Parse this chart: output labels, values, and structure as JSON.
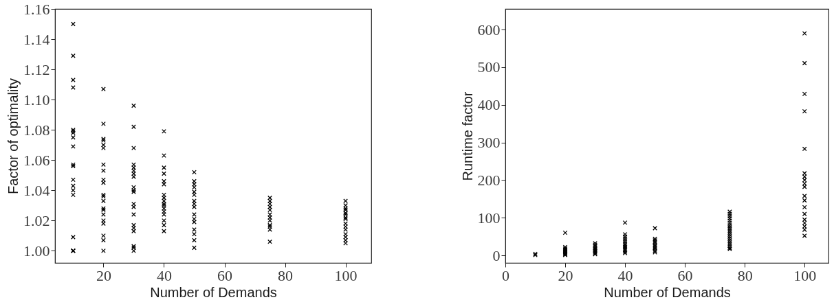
{
  "chart_data": [
    {
      "type": "scatter",
      "xlabel": "Number of Demands",
      "ylabel": "Factor of optimality",
      "color": "#000000",
      "marker": "cross",
      "xlim": [
        4,
        108.5
      ],
      "xticks": [
        20,
        40,
        60,
        80,
        100
      ],
      "ylim": [
        0.992,
        1.16
      ],
      "yticks": [
        {
          "value": 1,
          "label": "1.00"
        },
        1.02,
        1.04,
        1.06,
        1.08,
        {
          "value": 1.1,
          "label": "1.10"
        },
        1.12,
        1.14,
        1.16
      ],
      "x": [
        10,
        10,
        10,
        10,
        10,
        10,
        10,
        10,
        10,
        10,
        10,
        10,
        10,
        10,
        10,
        10,
        10,
        10,
        10,
        10,
        20,
        20,
        20,
        20,
        20,
        20,
        20,
        20,
        20,
        20,
        20,
        20,
        20,
        20,
        20,
        20,
        20,
        20,
        20,
        20,
        20,
        30,
        30,
        30,
        30,
        30,
        30,
        30,
        30,
        30,
        30,
        30,
        30,
        30,
        30,
        30,
        30,
        30,
        30,
        30,
        30,
        40,
        40,
        40,
        40,
        40,
        40,
        40,
        40,
        40,
        40,
        40,
        40,
        40,
        40,
        40,
        40,
        40,
        50,
        50,
        50,
        50,
        50,
        50,
        50,
        50,
        50,
        50,
        50,
        50,
        50,
        50,
        50,
        50,
        75,
        75,
        75,
        75,
        75,
        75,
        75,
        75,
        75,
        75,
        75,
        75,
        100,
        100,
        100,
        100,
        100,
        100,
        100,
        100,
        100,
        100,
        100,
        100,
        100,
        100,
        100
      ],
      "values": [
        1.15,
        1.129,
        1.113,
        1.108,
        1.08,
        1.079,
        1.078,
        1.075,
        1.069,
        1.057,
        1.056,
        1.047,
        1.043,
        1.04,
        1.037,
        1.009,
        1.0,
        1.0,
        1.0,
        1.0,
        1.107,
        1.084,
        1.074,
        1.073,
        1.07,
        1.068,
        1.057,
        1.053,
        1.047,
        1.045,
        1.037,
        1.036,
        1.033,
        1.028,
        1.027,
        1.024,
        1.02,
        1.018,
        1.01,
        1.007,
        1.0,
        1.096,
        1.082,
        1.068,
        1.057,
        1.055,
        1.053,
        1.051,
        1.049,
        1.042,
        1.04,
        1.039,
        1.031,
        1.029,
        1.024,
        1.017,
        1.015,
        1.013,
        1.003,
        1.002,
        1.0,
        1.079,
        1.063,
        1.055,
        1.051,
        1.046,
        1.044,
        1.037,
        1.035,
        1.033,
        1.031,
        1.03,
        1.028,
        1.026,
        1.024,
        1.02,
        1.017,
        1.013,
        1.052,
        1.046,
        1.044,
        1.042,
        1.039,
        1.037,
        1.033,
        1.031,
        1.029,
        1.024,
        1.021,
        1.019,
        1.014,
        1.011,
        1.007,
        1.002,
        1.035,
        1.033,
        1.031,
        1.029,
        1.027,
        1.024,
        1.022,
        1.02,
        1.017,
        1.016,
        1.014,
        1.006,
        1.033,
        1.03,
        1.028,
        1.027,
        1.025,
        1.024,
        1.022,
        1.021,
        1.018,
        1.016,
        1.014,
        1.011,
        1.009,
        1.007,
        1.005
      ]
    },
    {
      "type": "scatter",
      "xlabel": "Number of Demands",
      "ylabel": "Runtime factor",
      "color": "#000000",
      "marker": "cross",
      "xlim": [
        0,
        108
      ],
      "xticks": [
        0,
        20,
        40,
        60,
        80,
        100
      ],
      "ylim": [
        -20,
        655
      ],
      "yticks": [
        0,
        100,
        200,
        300,
        400,
        500,
        600
      ],
      "x": [
        10,
        10,
        20,
        20,
        20,
        20,
        20,
        20,
        20,
        20,
        20,
        20,
        20,
        30,
        30,
        30,
        30,
        30,
        30,
        30,
        30,
        30,
        30,
        40,
        40,
        40,
        40,
        40,
        40,
        40,
        40,
        40,
        40,
        40,
        40,
        40,
        50,
        50,
        50,
        50,
        50,
        50,
        50,
        50,
        50,
        50,
        50,
        75,
        75,
        75,
        75,
        75,
        75,
        75,
        75,
        75,
        75,
        75,
        75,
        75,
        75,
        75,
        75,
        75,
        75,
        75,
        75,
        100,
        100,
        100,
        100,
        100,
        100,
        100,
        100,
        100,
        100,
        100,
        100,
        100,
        100,
        100,
        100,
        100,
        100,
        100
      ],
      "values": [
        4,
        1,
        60,
        22,
        18,
        15,
        12,
        10,
        8,
        6,
        4,
        2,
        1,
        32,
        28,
        24,
        20,
        17,
        14,
        11,
        8,
        5,
        3,
        87,
        56,
        50,
        45,
        40,
        35,
        30,
        26,
        22,
        18,
        14,
        10,
        6,
        72,
        44,
        40,
        36,
        32,
        28,
        24,
        20,
        16,
        12,
        8,
        116,
        110,
        104,
        98,
        92,
        86,
        80,
        75,
        70,
        65,
        60,
        55,
        50,
        45,
        40,
        35,
        30,
        25,
        20,
        17,
        590,
        511,
        429,
        383,
        283,
        218,
        209,
        200,
        191,
        182,
        158,
        146,
        128,
        110,
        95,
        86,
        77,
        68,
        52
      ]
    }
  ]
}
